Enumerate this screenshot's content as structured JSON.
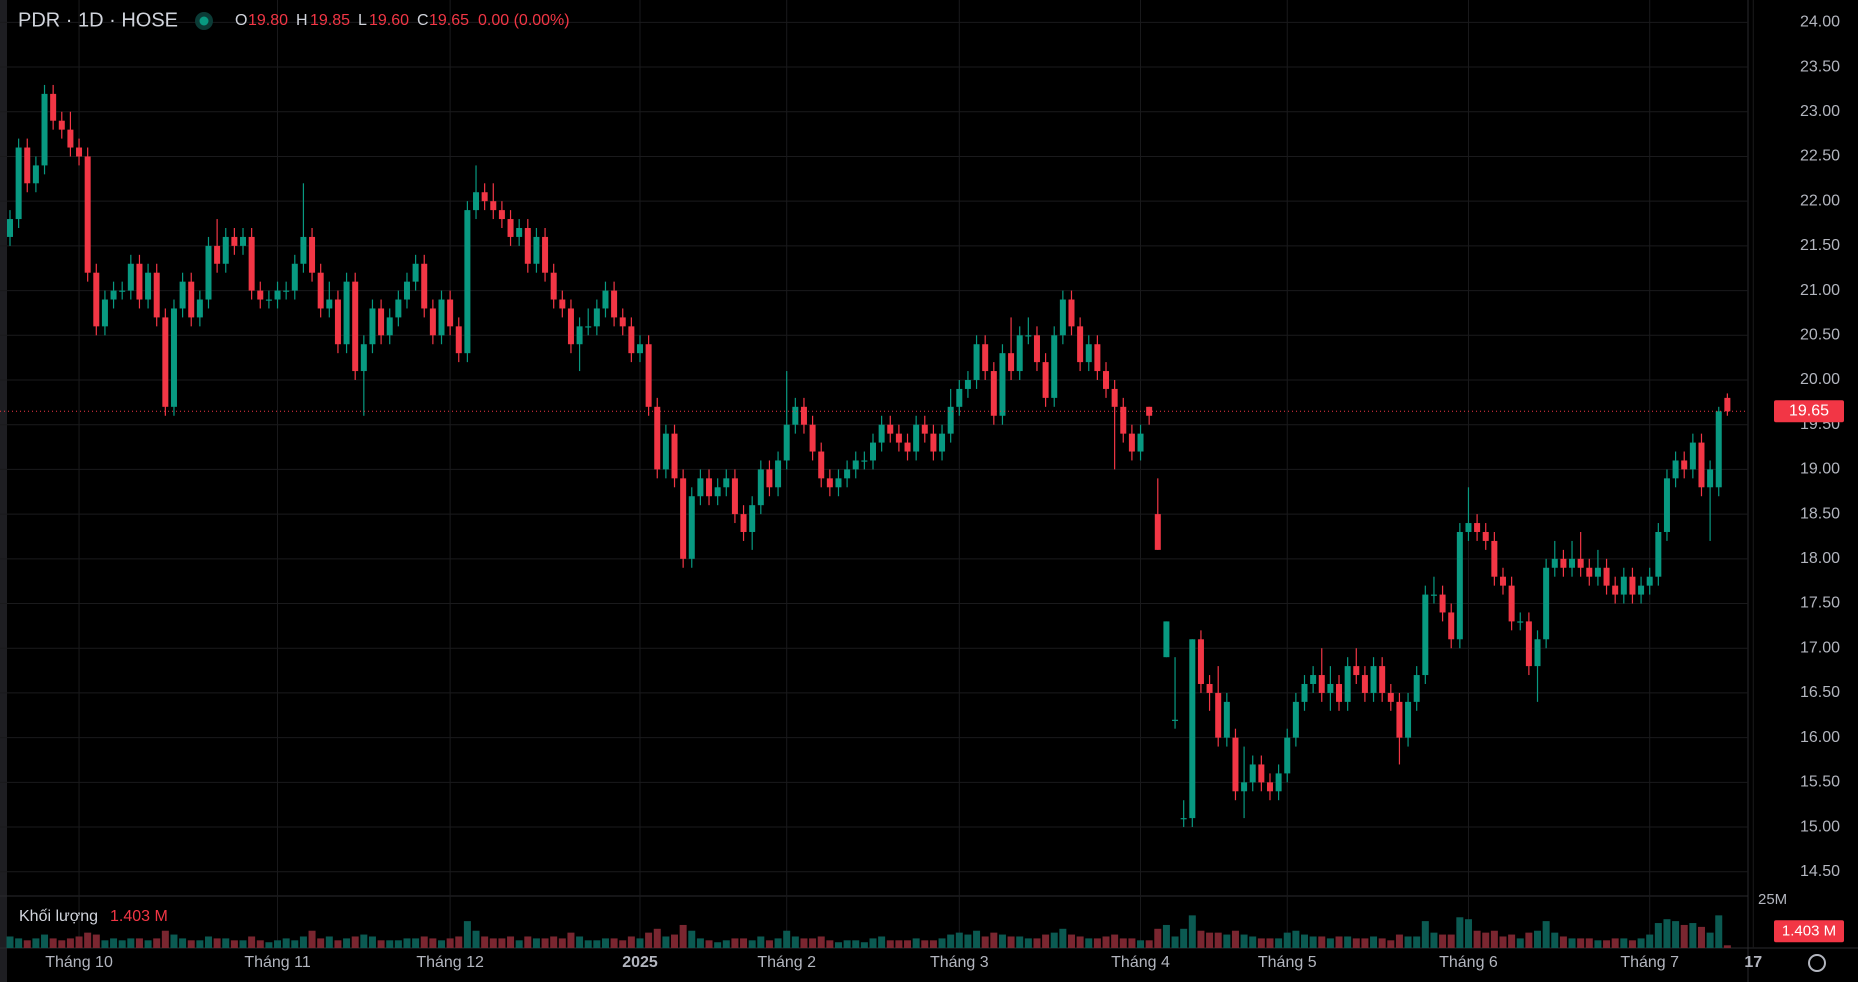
{
  "chart_data": {
    "type": "candlestick",
    "legend": {
      "symbol": "PDR · 1D · HOSE",
      "o_label": "O",
      "o": "19.80",
      "h_label": "H",
      "h": "19.85",
      "l_label": "L",
      "l": "19.60",
      "c_label": "C",
      "c": "19.65",
      "change": "0.00 (0.00%)"
    },
    "volume_title": "Khối lượng",
    "volume_label": "1.403 M",
    "up_color": "#089981",
    "down_color": "#f23645",
    "grid": true,
    "ylim": [
      14.24,
      24.25
    ],
    "yticks": [
      {
        "value": 14.5,
        "label": "14.50"
      },
      {
        "value": 15,
        "label": "15.00"
      },
      {
        "value": 15.5,
        "label": "15.50"
      },
      {
        "value": 16,
        "label": "16.00"
      },
      {
        "value": 16.5,
        "label": "16.50"
      },
      {
        "value": 17,
        "label": "17.00"
      },
      {
        "value": 17.5,
        "label": "17.50"
      },
      {
        "value": 18,
        "label": "18.00"
      },
      {
        "value": 18.5,
        "label": "18.50"
      },
      {
        "value": 19,
        "label": "19.00"
      },
      {
        "value": 19.5,
        "label": "19.50"
      },
      {
        "value": 20,
        "label": "20.00"
      },
      {
        "value": 20.5,
        "label": "20.50"
      },
      {
        "value": 21,
        "label": "21.00"
      },
      {
        "value": 21.5,
        "label": "21.50"
      },
      {
        "value": 22,
        "label": "22.00"
      },
      {
        "value": 22.5,
        "label": "22.50"
      },
      {
        "value": 23,
        "label": "23.00"
      },
      {
        "value": 23.5,
        "label": "23.50"
      },
      {
        "value": 24,
        "label": "24.00"
      }
    ],
    "vlim": [
      0,
      25
    ],
    "vticks": [
      {
        "value": 25,
        "label": "25M"
      }
    ],
    "x_labels": [
      "Tháng 10",
      "Tháng 11",
      "Tháng 12",
      "2025",
      "Tháng 2",
      "Tháng 3",
      "Tháng 4",
      "Tháng 5",
      "Tháng 6",
      "Tháng 7",
      "17"
    ],
    "x_label_index": [
      8,
      31,
      51,
      73,
      90,
      110,
      131,
      148,
      169,
      190,
      202
    ],
    "ohlc": [
      [
        21.6,
        21.9,
        21.5,
        21.8
      ],
      [
        21.8,
        22.7,
        21.7,
        22.6
      ],
      [
        22.6,
        22.7,
        22.1,
        22.2
      ],
      [
        22.2,
        22.5,
        22.1,
        22.4
      ],
      [
        22.4,
        23.3,
        22.3,
        23.2
      ],
      [
        23.2,
        23.3,
        22.8,
        22.9
      ],
      [
        22.9,
        23.0,
        22.7,
        22.8
      ],
      [
        22.8,
        23.0,
        22.5,
        22.6
      ],
      [
        22.6,
        22.7,
        22.4,
        22.5
      ],
      [
        22.5,
        22.6,
        21.1,
        21.2
      ],
      [
        21.2,
        21.3,
        20.5,
        20.6
      ],
      [
        20.6,
        21.0,
        20.5,
        20.9
      ],
      [
        20.9,
        21.1,
        20.8,
        21.0
      ],
      [
        21.0,
        21.1,
        20.9,
        21.0
      ],
      [
        21.0,
        21.4,
        20.9,
        21.3
      ],
      [
        21.3,
        21.4,
        20.8,
        20.9
      ],
      [
        20.9,
        21.3,
        20.8,
        21.2
      ],
      [
        21.2,
        21.3,
        20.6,
        20.7
      ],
      [
        20.7,
        20.8,
        19.6,
        19.7
      ],
      [
        19.7,
        20.9,
        19.6,
        20.8
      ],
      [
        20.8,
        21.2,
        20.7,
        21.1
      ],
      [
        21.1,
        21.2,
        20.6,
        20.7
      ],
      [
        20.7,
        21.0,
        20.6,
        20.9
      ],
      [
        20.9,
        21.6,
        20.8,
        21.5
      ],
      [
        21.5,
        21.8,
        21.2,
        21.3
      ],
      [
        21.3,
        21.7,
        21.2,
        21.6
      ],
      [
        21.6,
        21.7,
        21.4,
        21.5
      ],
      [
        21.5,
        21.7,
        21.4,
        21.6
      ],
      [
        21.6,
        21.7,
        20.9,
        21.0
      ],
      [
        21.0,
        21.1,
        20.8,
        20.9
      ],
      [
        20.9,
        21.0,
        20.8,
        20.9
      ],
      [
        20.9,
        21.1,
        20.8,
        21.0
      ],
      [
        21.0,
        21.1,
        20.9,
        21.0
      ],
      [
        21.0,
        21.4,
        20.9,
        21.3
      ],
      [
        21.3,
        22.2,
        21.2,
        21.6
      ],
      [
        21.6,
        21.7,
        21.1,
        21.2
      ],
      [
        21.2,
        21.3,
        20.7,
        20.8
      ],
      [
        20.8,
        21.1,
        20.7,
        20.9
      ],
      [
        20.9,
        21.0,
        20.3,
        20.4
      ],
      [
        20.4,
        21.2,
        20.3,
        21.1
      ],
      [
        21.1,
        21.2,
        20.0,
        20.1
      ],
      [
        20.1,
        20.5,
        19.6,
        20.4
      ],
      [
        20.4,
        20.9,
        20.3,
        20.8
      ],
      [
        20.8,
        20.9,
        20.4,
        20.5
      ],
      [
        20.5,
        20.8,
        20.4,
        20.7
      ],
      [
        20.7,
        21.0,
        20.6,
        20.9
      ],
      [
        20.9,
        21.2,
        20.8,
        21.1
      ],
      [
        21.1,
        21.4,
        21.0,
        21.3
      ],
      [
        21.3,
        21.4,
        20.7,
        20.8
      ],
      [
        20.8,
        20.9,
        20.4,
        20.5
      ],
      [
        20.5,
        21.0,
        20.4,
        20.9
      ],
      [
        20.9,
        21.0,
        20.5,
        20.6
      ],
      [
        20.6,
        20.7,
        20.2,
        20.3
      ],
      [
        20.3,
        22.0,
        20.2,
        21.9
      ],
      [
        21.9,
        22.4,
        21.8,
        22.1
      ],
      [
        22.1,
        22.2,
        21.9,
        22.0
      ],
      [
        22.0,
        22.2,
        21.8,
        21.9
      ],
      [
        21.9,
        22.0,
        21.7,
        21.8
      ],
      [
        21.8,
        21.9,
        21.5,
        21.6
      ],
      [
        21.6,
        21.8,
        21.5,
        21.7
      ],
      [
        21.7,
        21.8,
        21.2,
        21.3
      ],
      [
        21.3,
        21.7,
        21.2,
        21.6
      ],
      [
        21.6,
        21.7,
        21.1,
        21.2
      ],
      [
        21.2,
        21.3,
        20.8,
        20.9
      ],
      [
        20.9,
        21.0,
        20.7,
        20.8
      ],
      [
        20.8,
        20.9,
        20.3,
        20.4
      ],
      [
        20.4,
        20.7,
        20.1,
        20.6
      ],
      [
        20.6,
        20.8,
        20.5,
        20.6
      ],
      [
        20.6,
        20.9,
        20.5,
        20.8
      ],
      [
        20.8,
        21.1,
        20.7,
        21.0
      ],
      [
        21.0,
        21.1,
        20.6,
        20.7
      ],
      [
        20.7,
        20.8,
        20.5,
        20.6
      ],
      [
        20.6,
        20.7,
        20.2,
        20.3
      ],
      [
        20.3,
        20.5,
        20.2,
        20.4
      ],
      [
        20.4,
        20.5,
        19.6,
        19.7
      ],
      [
        19.7,
        19.8,
        18.9,
        19.0
      ],
      [
        19.0,
        19.5,
        18.9,
        19.4
      ],
      [
        19.4,
        19.5,
        18.8,
        18.9
      ],
      [
        18.9,
        19.0,
        17.9,
        18.0
      ],
      [
        18.0,
        18.8,
        17.9,
        18.7
      ],
      [
        18.7,
        19.0,
        18.6,
        18.9
      ],
      [
        18.9,
        19.0,
        18.6,
        18.7
      ],
      [
        18.7,
        18.9,
        18.6,
        18.8
      ],
      [
        18.8,
        19.0,
        18.7,
        18.9
      ],
      [
        18.9,
        19.0,
        18.4,
        18.5
      ],
      [
        18.5,
        18.6,
        18.2,
        18.3
      ],
      [
        18.3,
        18.7,
        18.1,
        18.6
      ],
      [
        18.6,
        19.1,
        18.5,
        19.0
      ],
      [
        19.0,
        19.1,
        18.7,
        18.8
      ],
      [
        18.8,
        19.2,
        18.7,
        19.1
      ],
      [
        19.1,
        20.1,
        19.0,
        19.5
      ],
      [
        19.5,
        19.8,
        19.4,
        19.7
      ],
      [
        19.7,
        19.8,
        19.4,
        19.5
      ],
      [
        19.5,
        19.6,
        19.1,
        19.2
      ],
      [
        19.2,
        19.3,
        18.8,
        18.9
      ],
      [
        18.9,
        19.0,
        18.7,
        18.8
      ],
      [
        18.8,
        19.0,
        18.7,
        18.9
      ],
      [
        18.9,
        19.1,
        18.8,
        19.0
      ],
      [
        19.0,
        19.2,
        18.9,
        19.1
      ],
      [
        19.1,
        19.2,
        19.0,
        19.1
      ],
      [
        19.1,
        19.4,
        19.0,
        19.3
      ],
      [
        19.3,
        19.6,
        19.2,
        19.5
      ],
      [
        19.5,
        19.6,
        19.3,
        19.4
      ],
      [
        19.4,
        19.5,
        19.2,
        19.3
      ],
      [
        19.3,
        19.4,
        19.1,
        19.2
      ],
      [
        19.2,
        19.6,
        19.1,
        19.5
      ],
      [
        19.5,
        19.6,
        19.3,
        19.4
      ],
      [
        19.4,
        19.5,
        19.1,
        19.2
      ],
      [
        19.2,
        19.5,
        19.1,
        19.4
      ],
      [
        19.4,
        19.9,
        19.3,
        19.7
      ],
      [
        19.7,
        20.0,
        19.6,
        19.9
      ],
      [
        19.9,
        20.1,
        19.8,
        20.0
      ],
      [
        20.0,
        20.5,
        19.9,
        20.4
      ],
      [
        20.4,
        20.5,
        20.0,
        20.1
      ],
      [
        20.1,
        20.2,
        19.5,
        19.6
      ],
      [
        19.6,
        20.4,
        19.5,
        20.3
      ],
      [
        20.3,
        20.7,
        20.0,
        20.1
      ],
      [
        20.1,
        20.6,
        20.0,
        20.5
      ],
      [
        20.5,
        20.7,
        20.4,
        20.5
      ],
      [
        20.5,
        20.6,
        20.1,
        20.2
      ],
      [
        20.2,
        20.3,
        19.7,
        19.8
      ],
      [
        19.8,
        20.6,
        19.7,
        20.5
      ],
      [
        20.5,
        21.0,
        20.4,
        20.9
      ],
      [
        20.9,
        21.0,
        20.5,
        20.6
      ],
      [
        20.6,
        20.7,
        20.1,
        20.2
      ],
      [
        20.2,
        20.5,
        20.1,
        20.4
      ],
      [
        20.4,
        20.5,
        20.0,
        20.1
      ],
      [
        20.1,
        20.2,
        19.8,
        19.9
      ],
      [
        19.9,
        20.0,
        19.0,
        19.7
      ],
      [
        19.7,
        19.8,
        19.3,
        19.4
      ],
      [
        19.4,
        19.5,
        19.1,
        19.2
      ],
      [
        19.2,
        19.5,
        19.1,
        19.4
      ],
      [
        19.7,
        19.7,
        19.5,
        19.6
      ],
      [
        18.5,
        18.9,
        18.1,
        18.1
      ],
      [
        16.9,
        17.3,
        16.9,
        17.3
      ],
      [
        16.2,
        16.9,
        16.1,
        16.2
      ],
      [
        15.1,
        15.3,
        15.0,
        15.1
      ],
      [
        15.1,
        17.1,
        15.0,
        17.1
      ],
      [
        17.1,
        17.2,
        16.5,
        16.6
      ],
      [
        16.6,
        16.7,
        16.3,
        16.5
      ],
      [
        16.5,
        16.8,
        15.9,
        16.0
      ],
      [
        16.0,
        16.5,
        15.9,
        16.4
      ],
      [
        16.0,
        16.1,
        15.3,
        15.4
      ],
      [
        15.4,
        15.9,
        15.1,
        15.5
      ],
      [
        15.5,
        15.8,
        15.4,
        15.7
      ],
      [
        15.7,
        15.8,
        15.4,
        15.5
      ],
      [
        15.5,
        15.6,
        15.3,
        15.4
      ],
      [
        15.4,
        15.7,
        15.3,
        15.6
      ],
      [
        15.6,
        16.1,
        15.5,
        16.0
      ],
      [
        16.0,
        16.5,
        15.9,
        16.4
      ],
      [
        16.4,
        16.7,
        16.3,
        16.6
      ],
      [
        16.6,
        16.8,
        16.5,
        16.7
      ],
      [
        16.7,
        17.0,
        16.4,
        16.5
      ],
      [
        16.5,
        16.8,
        16.3,
        16.6
      ],
      [
        16.6,
        16.7,
        16.3,
        16.4
      ],
      [
        16.4,
        16.9,
        16.3,
        16.8
      ],
      [
        16.8,
        17.0,
        16.6,
        16.7
      ],
      [
        16.7,
        16.8,
        16.4,
        16.5
      ],
      [
        16.5,
        16.9,
        16.4,
        16.8
      ],
      [
        16.8,
        16.9,
        16.4,
        16.5
      ],
      [
        16.5,
        16.6,
        16.3,
        16.4
      ],
      [
        16.4,
        16.5,
        15.7,
        16.0
      ],
      [
        16.0,
        16.5,
        15.9,
        16.4
      ],
      [
        16.4,
        16.8,
        16.3,
        16.7
      ],
      [
        16.7,
        17.7,
        16.6,
        17.6
      ],
      [
        17.6,
        17.8,
        17.5,
        17.6
      ],
      [
        17.6,
        17.7,
        17.3,
        17.4
      ],
      [
        17.4,
        17.5,
        17.0,
        17.1
      ],
      [
        17.1,
        18.4,
        17.0,
        18.3
      ],
      [
        18.3,
        18.8,
        18.2,
        18.4
      ],
      [
        18.4,
        18.5,
        18.2,
        18.3
      ],
      [
        18.3,
        18.4,
        18.1,
        18.2
      ],
      [
        18.2,
        18.3,
        17.7,
        17.8
      ],
      [
        17.8,
        17.9,
        17.6,
        17.7
      ],
      [
        17.7,
        17.8,
        17.2,
        17.3
      ],
      [
        17.3,
        17.4,
        17.2,
        17.3
      ],
      [
        17.3,
        17.4,
        16.7,
        16.8
      ],
      [
        16.8,
        17.2,
        16.4,
        17.1
      ],
      [
        17.1,
        18.0,
        17.0,
        17.9
      ],
      [
        17.9,
        18.2,
        17.8,
        18.0
      ],
      [
        18.0,
        18.1,
        17.8,
        17.9
      ],
      [
        17.9,
        18.2,
        17.8,
        18.0
      ],
      [
        18.0,
        18.3,
        17.8,
        17.9
      ],
      [
        17.9,
        18.0,
        17.7,
        17.8
      ],
      [
        17.8,
        18.1,
        17.7,
        17.9
      ],
      [
        17.9,
        18.0,
        17.6,
        17.7
      ],
      [
        17.7,
        17.8,
        17.5,
        17.6
      ],
      [
        17.6,
        17.9,
        17.5,
        17.8
      ],
      [
        17.8,
        17.9,
        17.5,
        17.6
      ],
      [
        17.6,
        17.8,
        17.5,
        17.7
      ],
      [
        17.7,
        17.9,
        17.6,
        17.8
      ],
      [
        17.8,
        18.4,
        17.7,
        18.3
      ],
      [
        18.3,
        19.0,
        18.2,
        18.9
      ],
      [
        18.9,
        19.2,
        18.8,
        19.1
      ],
      [
        19.1,
        19.2,
        18.9,
        19.0
      ],
      [
        19.0,
        19.4,
        18.9,
        19.3
      ],
      [
        19.3,
        19.4,
        18.7,
        18.8
      ],
      [
        18.8,
        19.1,
        18.2,
        19.0
      ],
      [
        18.8,
        19.7,
        18.7,
        19.65
      ],
      [
        19.8,
        19.85,
        19.6,
        19.65
      ]
    ],
    "volume": [
      6,
      5,
      4,
      5,
      7,
      5,
      4,
      5,
      6,
      8,
      7,
      4,
      5,
      4,
      5,
      5,
      4,
      5,
      9,
      7,
      5,
      4,
      4,
      6,
      5,
      5,
      4,
      4,
      6,
      4,
      3,
      4,
      5,
      4,
      6,
      9,
      5,
      6,
      4,
      5,
      6,
      7,
      6,
      4,
      4,
      4,
      5,
      5,
      6,
      5,
      4,
      5,
      6,
      14,
      9,
      6,
      5,
      5,
      6,
      4,
      6,
      5,
      5,
      6,
      5,
      8,
      6,
      4,
      4,
      5,
      5,
      4,
      6,
      5,
      8,
      10,
      6,
      7,
      12,
      9,
      5,
      4,
      3,
      4,
      5,
      5,
      4,
      6,
      4,
      5,
      9,
      6,
      5,
      5,
      6,
      4,
      3,
      4,
      4,
      3,
      5,
      6,
      4,
      4,
      4,
      5,
      4,
      4,
      5,
      7,
      8,
      7,
      9,
      6,
      8,
      7,
      6,
      6,
      5,
      5,
      7,
      8,
      10,
      7,
      6,
      5,
      5,
      6,
      7,
      5,
      5,
      4,
      4,
      10,
      12,
      6,
      10,
      17,
      9,
      8,
      8,
      7,
      9,
      7,
      6,
      5,
      5,
      5,
      8,
      9,
      7,
      6,
      6,
      5,
      6,
      6,
      5,
      5,
      6,
      5,
      4,
      7,
      6,
      6,
      14,
      8,
      7,
      7,
      16,
      15,
      9,
      8,
      9,
      6,
      7,
      5,
      8,
      9,
      14,
      8,
      6,
      5,
      5,
      5,
      4,
      4,
      5,
      5,
      4,
      5,
      7,
      13,
      15,
      14,
      12,
      13,
      11,
      8,
      17,
      1.403
    ]
  }
}
